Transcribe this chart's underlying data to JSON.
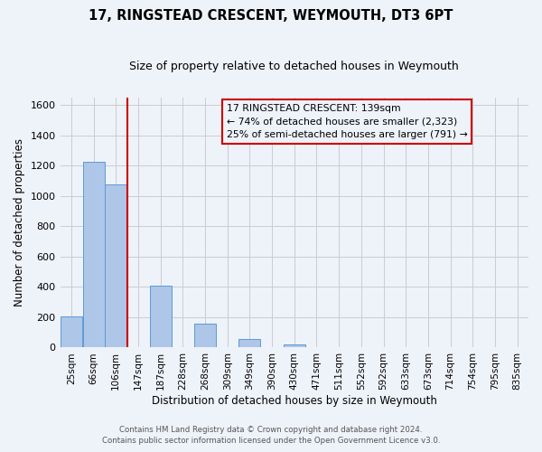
{
  "title": "17, RINGSTEAD CRESCENT, WEYMOUTH, DT3 6PT",
  "subtitle": "Size of property relative to detached houses in Weymouth",
  "xlabel": "Distribution of detached houses by size in Weymouth",
  "ylabel": "Number of detached properties",
  "footer_line1": "Contains HM Land Registry data © Crown copyright and database right 2024.",
  "footer_line2": "Contains public sector information licensed under the Open Government Licence v3.0.",
  "bin_labels": [
    "25sqm",
    "66sqm",
    "106sqm",
    "147sqm",
    "187sqm",
    "228sqm",
    "268sqm",
    "309sqm",
    "349sqm",
    "390sqm",
    "430sqm",
    "471sqm",
    "511sqm",
    "552sqm",
    "592sqm",
    "633sqm",
    "673sqm",
    "714sqm",
    "754sqm",
    "795sqm",
    "835sqm"
  ],
  "bar_values": [
    205,
    1225,
    1075,
    0,
    410,
    0,
    155,
    0,
    55,
    0,
    20,
    0,
    0,
    0,
    0,
    0,
    0,
    0,
    0,
    0,
    0
  ],
  "bar_color": "#aec6e8",
  "bar_edge_color": "#5b9bd5",
  "ylim": [
    0,
    1650
  ],
  "yticks": [
    0,
    200,
    400,
    600,
    800,
    1000,
    1200,
    1400,
    1600
  ],
  "property_line_x": 3,
  "property_line_color": "#cc0000",
  "annotation_title": "17 RINGSTEAD CRESCENT: 139sqm",
  "annotation_line1": "← 74% of detached houses are smaller (2,323)",
  "annotation_line2": "25% of semi-detached houses are larger (791) →",
  "box_edge_color": "#cc0000",
  "grid_color": "#cccccc",
  "background_color": "#eef2f9"
}
